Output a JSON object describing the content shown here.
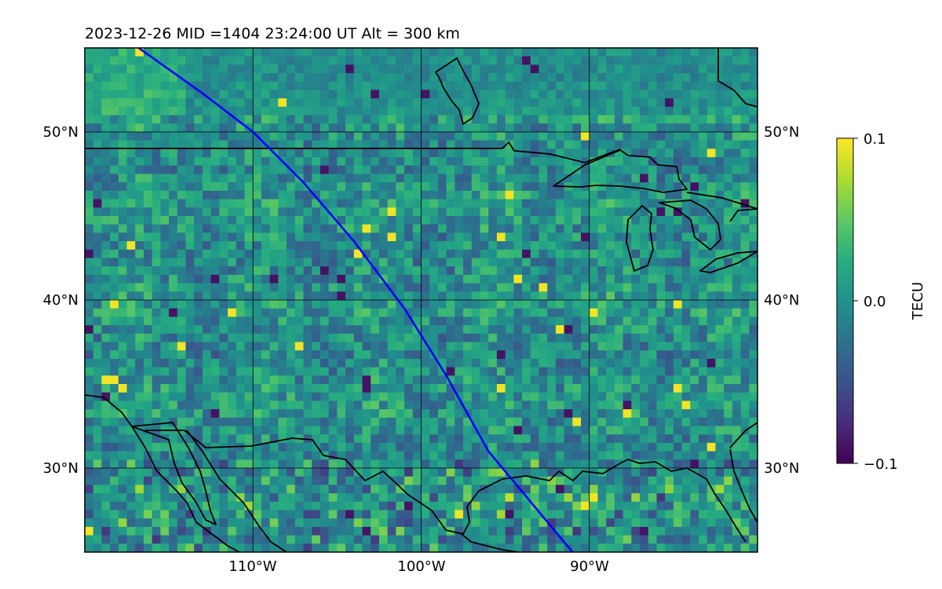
{
  "chart_data": {
    "type": "heatmap",
    "title": "2023-12-26  MID =1404    23:24:00  UT  Alt = 300 km",
    "projection": "plate-carree map",
    "lon_range": [
      -120,
      -80
    ],
    "lat_range": [
      25,
      55
    ],
    "grid": true,
    "lon_ticks": [
      {
        "value": -110,
        "label": "110°W"
      },
      {
        "value": -100,
        "label": "100°W"
      },
      {
        "value": -90,
        "label": "90°W"
      }
    ],
    "lat_ticks": [
      {
        "value": 50,
        "label": "50°N"
      },
      {
        "value": 40,
        "label": "40°N"
      },
      {
        "value": 30,
        "label": "30°N"
      }
    ],
    "colorbar": {
      "label": "TECU",
      "colormap": "viridis",
      "range": [
        -0.1,
        0.1
      ],
      "ticks": [
        {
          "value": 0.1,
          "label": "0.1"
        },
        {
          "value": 0.0,
          "label": "0.0"
        },
        {
          "value": -0.1,
          "label": "−0.1"
        }
      ]
    },
    "track": {
      "color": "#0000ff",
      "lon": [
        -116.8,
        -113.0,
        -110.0,
        -107.0,
        -104.0,
        -101.0,
        -98.5,
        -96.0,
        -93.5,
        -91.0
      ],
      "lat": [
        55.0,
        52.3,
        50.0,
        47.0,
        43.5,
        39.5,
        35.5,
        31.0,
        28.0,
        25.0
      ]
    },
    "coast_color": "#000000"
  }
}
